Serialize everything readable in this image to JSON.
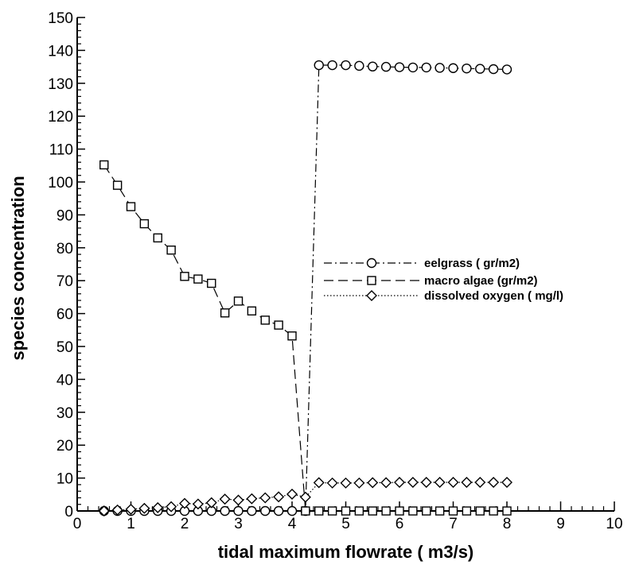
{
  "chart_data": {
    "type": "line",
    "xlabel": "tidal maximum flowrate ( m3/s)",
    "ylabel": "species concentration",
    "xlim": [
      0,
      10
    ],
    "ylim": [
      0,
      150
    ],
    "xticks": [
      0,
      1,
      2,
      3,
      4,
      5,
      6,
      7,
      8,
      9,
      10
    ],
    "yticks": [
      0,
      10,
      20,
      30,
      40,
      50,
      60,
      70,
      80,
      90,
      100,
      110,
      120,
      130,
      140,
      150
    ],
    "grid": false,
    "legend_position": "right",
    "series": [
      {
        "name": "eelgrass ( gr/m2)",
        "marker": "circle",
        "line_style": "dash-dot",
        "x": [
          0.5,
          0.75,
          1.0,
          1.25,
          1.5,
          1.75,
          2.0,
          2.25,
          2.5,
          2.75,
          3.0,
          3.25,
          3.5,
          3.75,
          4.0,
          4.25,
          4.5,
          4.75,
          5.0,
          5.25,
          5.5,
          5.75,
          6.0,
          6.25,
          6.5,
          6.75,
          7.0,
          7.25,
          7.5,
          7.75,
          8.0
        ],
        "values": [
          0,
          0,
          0,
          0,
          0,
          0,
          0,
          0,
          0,
          0,
          0,
          0,
          0,
          0,
          0,
          0,
          135.5,
          135.5,
          135.5,
          135.3,
          135.1,
          135.0,
          134.9,
          134.8,
          134.8,
          134.7,
          134.6,
          134.5,
          134.4,
          134.3,
          134.2
        ]
      },
      {
        "name": "macro algae (gr/m2)",
        "marker": "square",
        "line_style": "dash",
        "x": [
          0.5,
          0.75,
          1.0,
          1.25,
          1.5,
          1.75,
          2.0,
          2.25,
          2.5,
          2.75,
          3.0,
          3.25,
          3.5,
          3.75,
          4.0,
          4.25,
          4.5,
          4.75,
          5.0,
          5.25,
          5.5,
          5.75,
          6.0,
          6.25,
          6.5,
          6.75,
          7.0,
          7.25,
          7.5,
          7.75,
          8.0
        ],
        "values": [
          105.2,
          99.0,
          92.5,
          87.3,
          83.0,
          79.3,
          71.3,
          70.5,
          69.2,
          60.2,
          63.8,
          60.8,
          58.0,
          56.5,
          53.2,
          0,
          0,
          0,
          0,
          0,
          0,
          0,
          0,
          0,
          0,
          0,
          0,
          0,
          0,
          0,
          0
        ]
      },
      {
        "name": "dissolved oxygen ( mg/l)",
        "marker": "diamond",
        "line_style": "dot",
        "x": [
          0.5,
          0.75,
          1.0,
          1.25,
          1.5,
          1.75,
          2.0,
          2.25,
          2.5,
          2.75,
          3.0,
          3.25,
          3.5,
          3.75,
          4.0,
          4.25,
          4.5,
          4.75,
          5.0,
          5.25,
          5.5,
          5.75,
          6.0,
          6.25,
          6.5,
          6.75,
          7.0,
          7.25,
          7.5,
          7.75,
          8.0
        ],
        "values": [
          0,
          0.3,
          0.5,
          0.8,
          1.0,
          1.3,
          2.3,
          2.1,
          2.5,
          3.6,
          3.3,
          3.7,
          4.0,
          4.3,
          5.1,
          4.2,
          8.6,
          8.5,
          8.5,
          8.5,
          8.6,
          8.6,
          8.7,
          8.7,
          8.7,
          8.7,
          8.7,
          8.7,
          8.7,
          8.7,
          8.7
        ]
      }
    ]
  }
}
